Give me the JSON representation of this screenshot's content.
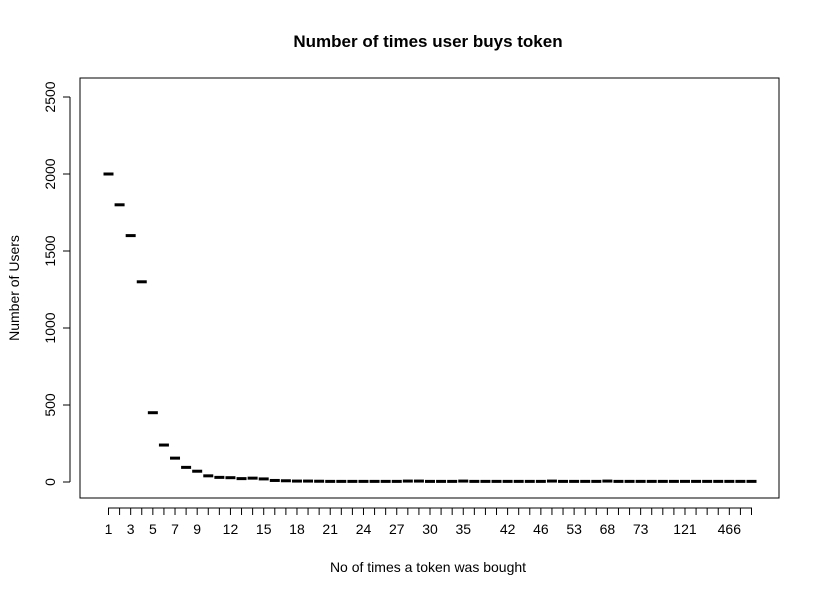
{
  "chart_data": {
    "type": "boxplot",
    "title": "Number of times user buys token",
    "xlabel": "No of times a token was bought",
    "ylabel": "Number of Users",
    "ylim": [
      0,
      2600
    ],
    "yticks": [
      0,
      500,
      1000,
      1500,
      2000,
      2500
    ],
    "xtick_labels": [
      "1",
      "3",
      "5",
      "7",
      "9",
      "12",
      "15",
      "18",
      "21",
      "24",
      "27",
      "30",
      "35",
      "42",
      "46",
      "53",
      "68",
      "73",
      "121",
      "466"
    ],
    "num_categories": 59,
    "values": [
      2000,
      1800,
      1600,
      1300,
      450,
      240,
      155,
      95,
      70,
      40,
      30,
      28,
      22,
      25,
      20,
      10,
      8,
      6,
      6,
      5,
      4,
      4,
      4,
      4,
      4,
      4,
      4,
      6,
      6,
      4,
      4,
      4,
      6,
      4,
      4,
      4,
      4,
      4,
      4,
      4,
      6,
      4,
      4,
      4,
      4,
      6,
      4,
      4,
      4,
      4,
      4,
      4,
      4,
      4,
      4,
      4,
      4,
      4,
      4
    ],
    "grid": false,
    "legend": "none"
  }
}
